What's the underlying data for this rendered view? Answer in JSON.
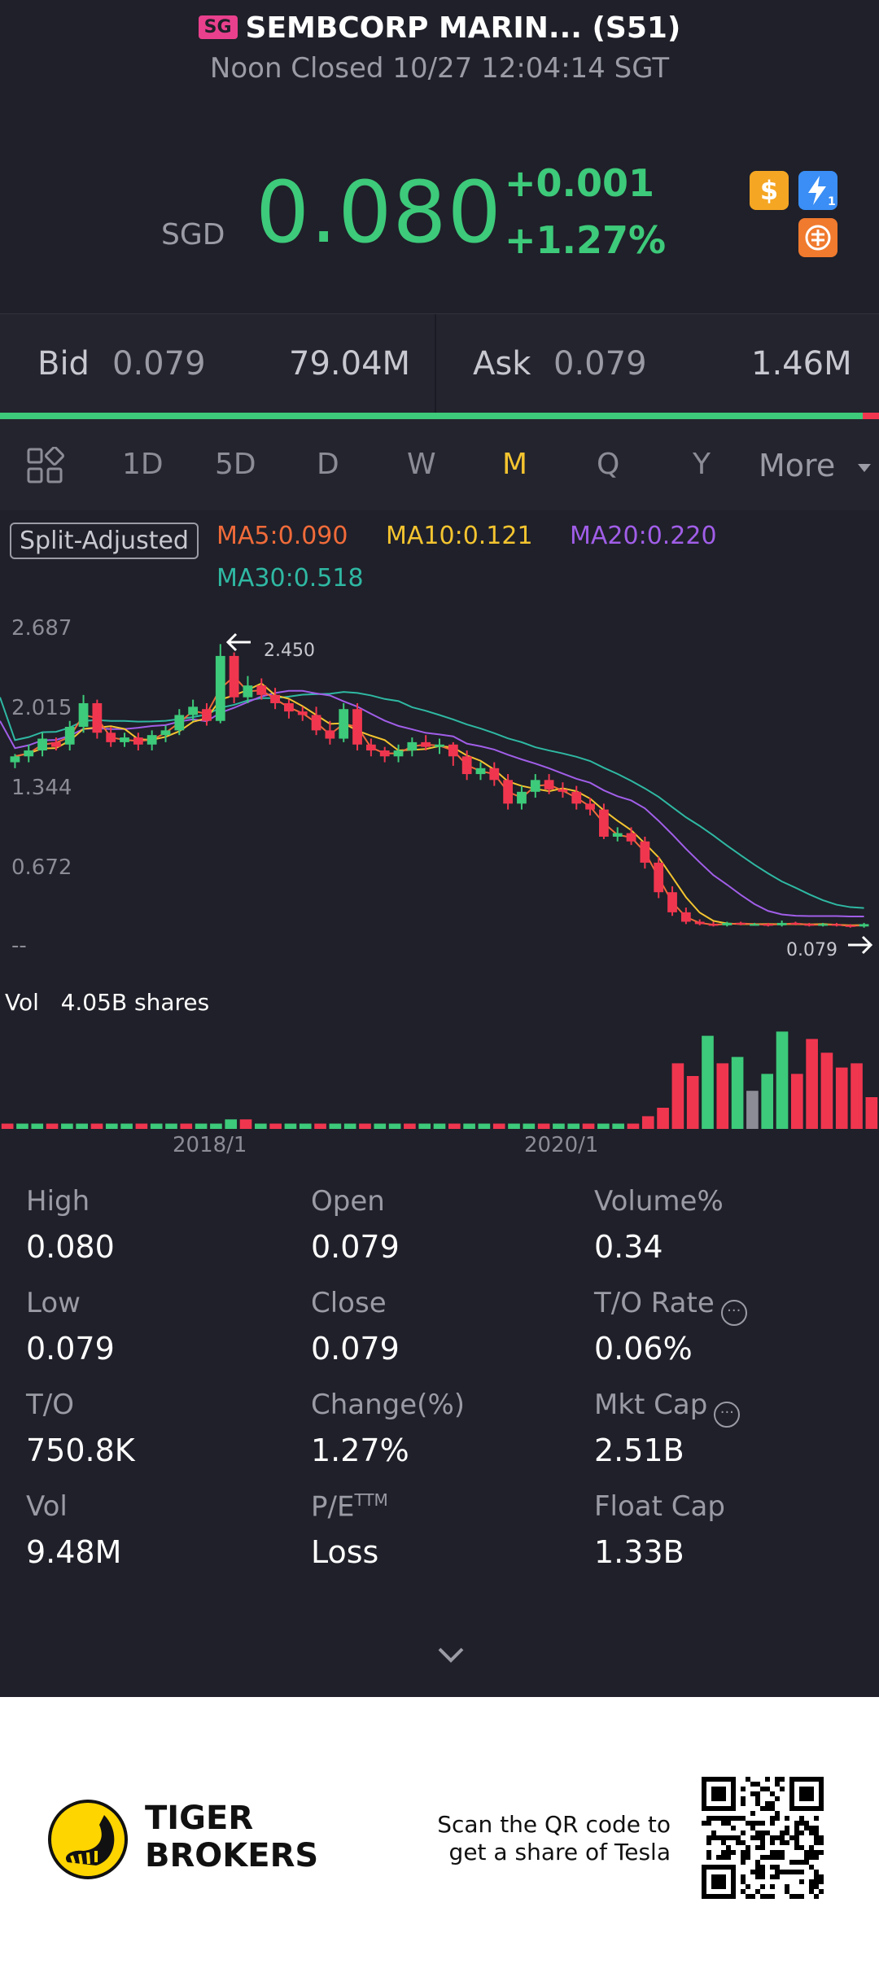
{
  "header": {
    "market_badge": "SG",
    "title": "SEMBCORP MARIN... (S51)",
    "status": "Noon Closed 10/27 12:04:14 SGT",
    "currency": "SGD",
    "price": "0.080",
    "change": "+0.001",
    "change_pct": "+1.27%",
    "icons": [
      "dollar-icon",
      "lightning-level-icon",
      "tiger-coin-icon"
    ]
  },
  "bid_ask": {
    "bid_label": "Bid",
    "bid_price": "0.079",
    "bid_volume": "79.04M",
    "ask_label": "Ask",
    "ask_price": "0.079",
    "ask_volume": "1.46M"
  },
  "tabs": {
    "items": [
      "1D",
      "5D",
      "D",
      "W",
      "M",
      "Q",
      "Y",
      "More"
    ],
    "active": "M"
  },
  "chart": {
    "split_label": "Split-Adjusted",
    "ma5": "MA5:0.090",
    "ma10": "MA10:0.121",
    "ma20": "MA20:0.220",
    "ma30": "MA30:0.518",
    "y_labels": [
      "2.687",
      "2.015",
      "1.344",
      "0.672",
      "--"
    ],
    "high_marker": "2.450",
    "last_marker": "0.079",
    "vol_label": "Vol",
    "vol_value": "4.05B shares",
    "x_labels": [
      "2018/1",
      "2020/1"
    ],
    "colors": {
      "up": "#3dca7a",
      "down": "#f0364f",
      "ma5": "#f06b3a",
      "ma10": "#f4c430",
      "ma20": "#a15ee8",
      "ma30": "#2fb8a3"
    }
  },
  "stats": [
    {
      "label": "High",
      "value": "0.080"
    },
    {
      "label": "Open",
      "value": "0.079"
    },
    {
      "label": "Volume%",
      "value": "0.34"
    },
    {
      "label": "Low",
      "value": "0.079"
    },
    {
      "label": "Close",
      "value": "0.079"
    },
    {
      "label": "T/O Rate",
      "value": "0.06%"
    },
    {
      "label": "T/O",
      "value": "750.8K"
    },
    {
      "label": "Change(%)",
      "value": "1.27%"
    },
    {
      "label": "Mkt Cap",
      "value": "2.51B"
    },
    {
      "label": "Vol",
      "value": "9.48M"
    },
    {
      "label": "P/E",
      "value": "Loss"
    },
    {
      "label": "Float Cap",
      "value": "1.33B"
    }
  ],
  "pe_superscript": "TTM",
  "footer": {
    "brand_line1": "TIGER",
    "brand_line2": "BROKERS",
    "qr_line1": "Scan the QR code to",
    "qr_line2": "get a share of Tesla"
  }
}
